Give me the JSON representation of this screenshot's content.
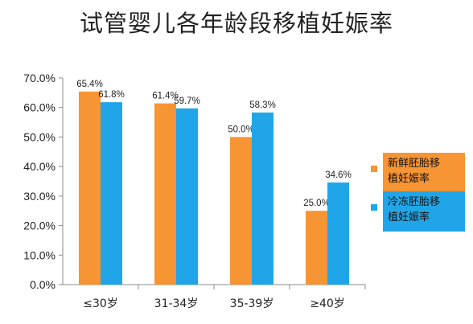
{
  "chart_data": {
    "type": "bar",
    "title": "试管婴儿各年龄段移植妊娠率",
    "categories": [
      "≤30岁",
      "31-34岁",
      "35-39岁",
      "≥40岁"
    ],
    "series": [
      {
        "name": "新鲜胚胎移植妊娠率",
        "color": "#f79433",
        "values": [
          65.4,
          61.4,
          50.0,
          25.0
        ],
        "labels": [
          "65.4%",
          "61.4%",
          "50.0%",
          "25.0%"
        ]
      },
      {
        "name": "冷冻胚胎移植妊娠率",
        "color": "#20a6e8",
        "values": [
          61.8,
          59.7,
          58.3,
          34.6
        ],
        "labels": [
          "61.8%",
          "59.7%",
          "58.3%",
          "34.6%"
        ]
      }
    ],
    "ylim": [
      0,
      70
    ],
    "yticks": [
      0,
      10,
      20,
      30,
      40,
      50,
      60,
      70
    ],
    "ytick_labels": [
      "0.0%",
      "10.0%",
      "20.0%",
      "30.0%",
      "40.0%",
      "50.0%",
      "60.0%",
      "70.0%"
    ],
    "grid": false,
    "legend": {
      "position": "right",
      "items": [
        {
          "line1": "新鲜胚胎移",
          "line2": "植妊娠率"
        },
        {
          "line1": "冷冻胚胎移",
          "line2": "植妊娠率"
        }
      ]
    }
  }
}
